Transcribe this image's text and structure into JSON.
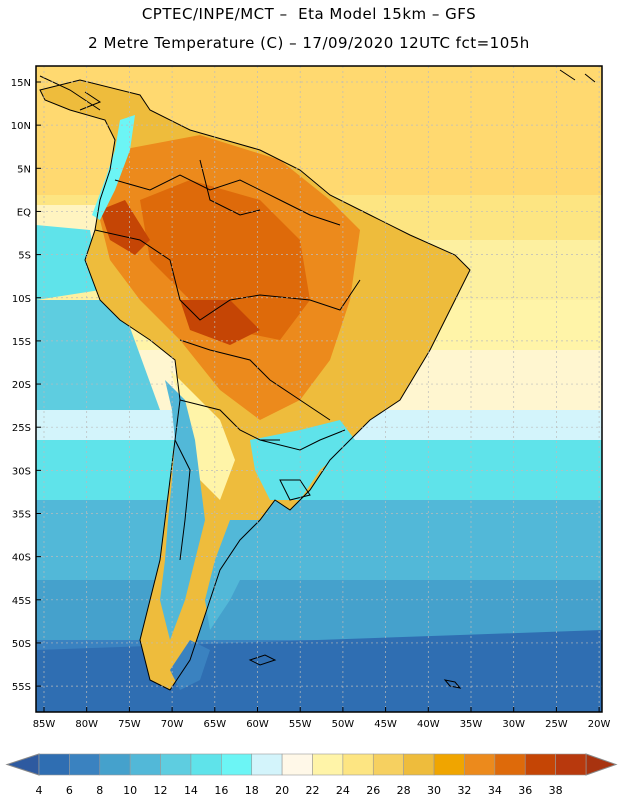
{
  "header": {
    "line1": "CPTEC/INPE/MCT –  Eta Model 15km – GFS",
    "line2": "2 Metre Temperature (C) – 17/09/2020 12UTC fct=105h"
  },
  "map": {
    "lat_labels": [
      "15N",
      "10N",
      "5N",
      "EQ",
      "5S",
      "10S",
      "15S",
      "20S",
      "25S",
      "30S",
      "35S",
      "40S",
      "45S",
      "50S",
      "55S"
    ],
    "lon_labels": [
      "85W",
      "80W",
      "75W",
      "70W",
      "65W",
      "60W",
      "55W",
      "50W",
      "45W",
      "40W",
      "35W",
      "30W",
      "25W",
      "20W"
    ]
  },
  "legend": {
    "labels": [
      "4",
      "6",
      "8",
      "10",
      "12",
      "14",
      "16",
      "18",
      "20",
      "22",
      "24",
      "26",
      "28",
      "30",
      "32",
      "34",
      "36",
      "38"
    ],
    "colors": [
      "#2f6eb2",
      "#3a82c0",
      "#45a1cc",
      "#52b8d8",
      "#5ecde0",
      "#5fe3ea",
      "#6cf5f5",
      "#d3f4fb",
      "#fff8e8",
      "#fff4a8",
      "#fde582",
      "#f6d060",
      "#eebc3c",
      "#f0a500",
      "#ec8a1c",
      "#de6a0a",
      "#c54505",
      "#b8390d"
    ],
    "low_arrow_color": "#2e5aa0",
    "high_arrow_color": "#a8330f"
  }
}
